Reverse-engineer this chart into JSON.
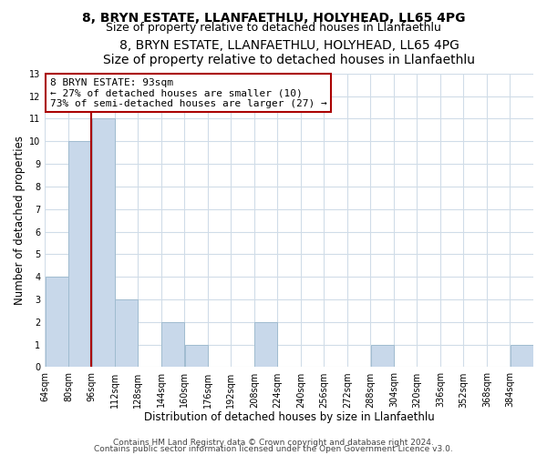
{
  "title": "8, BRYN ESTATE, LLANFAETHLU, HOLYHEAD, LL65 4PG",
  "subtitle": "Size of property relative to detached houses in Llanfaethlu",
  "xlabel": "Distribution of detached houses by size in Llanfaethlu",
  "ylabel": "Number of detached properties",
  "bin_starts": [
    64,
    80,
    96,
    112,
    128,
    144,
    160,
    176,
    192,
    208,
    224,
    240,
    256,
    272,
    288,
    304,
    320,
    336,
    352,
    368,
    384
  ],
  "bin_width": 16,
  "values": [
    4,
    10,
    11,
    3,
    0,
    2,
    1,
    0,
    0,
    2,
    0,
    0,
    0,
    0,
    1,
    0,
    0,
    0,
    0,
    0,
    1
  ],
  "bar_color": "#c8d8ea",
  "bar_edgecolor": "#a0bcd0",
  "grid_color": "#d0dce8",
  "vline_x": 96,
  "vline_color": "#aa0000",
  "annotation_box_text": "8 BRYN ESTATE: 93sqm\n← 27% of detached houses are smaller (10)\n73% of semi-detached houses are larger (27) →",
  "ylim": [
    0,
    13
  ],
  "yticks": [
    0,
    1,
    2,
    3,
    4,
    5,
    6,
    7,
    8,
    9,
    10,
    11,
    12,
    13
  ],
  "tick_labels": [
    "64sqm",
    "80sqm",
    "96sqm",
    "112sqm",
    "128sqm",
    "144sqm",
    "160sqm",
    "176sqm",
    "192sqm",
    "208sqm",
    "224sqm",
    "240sqm",
    "256sqm",
    "272sqm",
    "288sqm",
    "304sqm",
    "320sqm",
    "336sqm",
    "352sqm",
    "368sqm",
    "384sqm"
  ],
  "footer_line1": "Contains HM Land Registry data © Crown copyright and database right 2024.",
  "footer_line2": "Contains public sector information licensed under the Open Government Licence v3.0.",
  "title_fontsize": 10,
  "subtitle_fontsize": 9,
  "xlabel_fontsize": 8.5,
  "ylabel_fontsize": 8.5,
  "tick_fontsize": 7,
  "footer_fontsize": 6.5,
  "annotation_fontsize": 8
}
